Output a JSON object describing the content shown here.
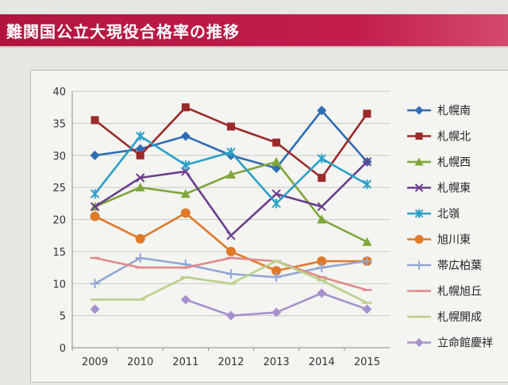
{
  "header": {
    "title": "難関国公立大現役合格率の推移",
    "accent": "#b3143f"
  },
  "chart_data": {
    "type": "line",
    "title": "",
    "xlabel": "",
    "ylabel": "",
    "ylim": [
      0,
      40
    ],
    "yticks": [
      "0",
      "5",
      "10",
      "15",
      "20",
      "25",
      "30",
      "35",
      "40"
    ],
    "categories": [
      "2009",
      "2010",
      "2011",
      "2012",
      "2013",
      "2014",
      "2015"
    ],
    "grid": true,
    "legend_position": "right",
    "series": [
      {
        "name": "札幌南",
        "color": "#2f6db5",
        "marker": "diamond",
        "values": [
          30,
          31,
          33,
          30,
          28,
          37,
          29
        ]
      },
      {
        "name": "札幌北",
        "color": "#9b2a2a",
        "marker": "square",
        "values": [
          35.5,
          30,
          37.5,
          34.5,
          32,
          26.5,
          36.5
        ]
      },
      {
        "name": "札幌西",
        "color": "#7ea63b",
        "marker": "triangle",
        "values": [
          22,
          25,
          24,
          27,
          29,
          20,
          16.5
        ]
      },
      {
        "name": "札幌東",
        "color": "#6a3f8c",
        "marker": "x",
        "values": [
          22,
          26.5,
          27.5,
          17.5,
          24,
          22,
          29
        ]
      },
      {
        "name": "北嶺",
        "color": "#2aa0c8",
        "marker": "star",
        "values": [
          24,
          33,
          28.5,
          30.5,
          22.5,
          29.5,
          25.5
        ]
      },
      {
        "name": "旭川東",
        "color": "#e07a28",
        "marker": "circle",
        "values": [
          20.5,
          17,
          21,
          15,
          12,
          13.5,
          13.5
        ]
      },
      {
        "name": "帯広柏葉",
        "color": "#93a7d6",
        "marker": "plus",
        "values": [
          10,
          14,
          13,
          11.5,
          11,
          12.5,
          13.5
        ]
      },
      {
        "name": "札幌旭丘",
        "color": "#e08a8a",
        "marker": "dash",
        "values": [
          14,
          12.5,
          12.5,
          14,
          13.5,
          11,
          9
        ]
      },
      {
        "name": "札幌開成",
        "color": "#b9d08a",
        "marker": "dash",
        "values": [
          7.5,
          7.5,
          11,
          10,
          13.5,
          10.5,
          7
        ]
      },
      {
        "name": "立命館慶祥",
        "color": "#a691cc",
        "marker": "diamond",
        "values": [
          6,
          null,
          7.5,
          5,
          5.5,
          8.5,
          6
        ]
      }
    ]
  }
}
